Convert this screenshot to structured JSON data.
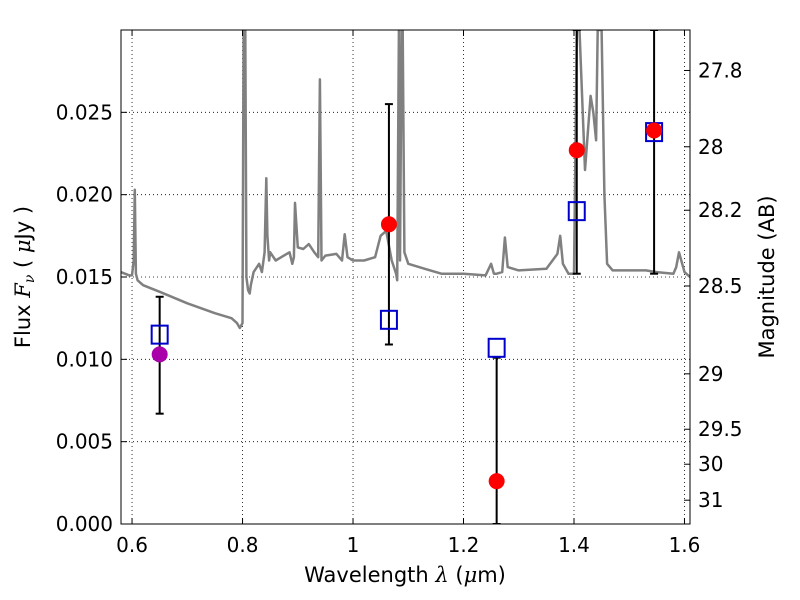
{
  "chart_data": {
    "type": "scatter",
    "title": "",
    "xlabel": "Wavelength  λ (μm)",
    "ylabel": "Flux  Fν  ( μJy )",
    "right_ylabel": "Magnitude (AB)",
    "xlim": [
      0.58,
      1.61
    ],
    "ylim": [
      0.0,
      0.03
    ],
    "grid": true,
    "x_ticks": [
      {
        "value": 0.6,
        "label": "0.6"
      },
      {
        "value": 0.8,
        "label": "0.8"
      },
      {
        "value": 1.0,
        "label": "1"
      },
      {
        "value": 1.2,
        "label": "1.2"
      },
      {
        "value": 1.4,
        "label": "1.4"
      },
      {
        "value": 1.6,
        "label": "1.6"
      }
    ],
    "y_ticks": [
      {
        "value": 0.0,
        "label": "0.000"
      },
      {
        "value": 0.005,
        "label": "0.005"
      },
      {
        "value": 0.01,
        "label": "0.010"
      },
      {
        "value": 0.015,
        "label": "0.015"
      },
      {
        "value": 0.02,
        "label": "0.020"
      },
      {
        "value": 0.025,
        "label": "0.025"
      }
    ],
    "right_ticks": [
      {
        "mag": 27.8,
        "label": "27.8"
      },
      {
        "mag": 28.0,
        "label": "28"
      },
      {
        "mag": 28.2,
        "label": "28.2"
      },
      {
        "mag": 28.5,
        "label": "28.5"
      },
      {
        "mag": 29.0,
        "label": "29"
      },
      {
        "mag": 29.5,
        "label": "29.5"
      },
      {
        "mag": 30.0,
        "label": "30"
      },
      {
        "mag": 31.0,
        "label": "31"
      }
    ],
    "observed": [
      {
        "x": 0.65,
        "y": 0.0103,
        "yerr_low": 0.0067,
        "yerr_high": 0.0138,
        "color": "#aa00aa"
      },
      {
        "x": 1.065,
        "y": 0.0182,
        "yerr_low": 0.0109,
        "yerr_high": 0.0255,
        "color": "#ff0000"
      },
      {
        "x": 1.26,
        "y": 0.0026,
        "yerr_low": 0.0,
        "yerr_high": 0.0101,
        "color": "#ff0000"
      },
      {
        "x": 1.405,
        "y": 0.0227,
        "yerr_low": 0.0152,
        "yerr_high": 0.03,
        "color": "#ff0000"
      },
      {
        "x": 1.545,
        "y": 0.0239,
        "yerr_low": 0.0152,
        "yerr_high": 0.03,
        "color": "#ff0000"
      }
    ],
    "model_points": [
      {
        "x": 0.65,
        "y": 0.0115
      },
      {
        "x": 1.065,
        "y": 0.0124
      },
      {
        "x": 1.26,
        "y": 0.0107
      },
      {
        "x": 1.405,
        "y": 0.019
      },
      {
        "x": 1.545,
        "y": 0.0238
      }
    ],
    "model_spectrum": {
      "color": "#808080",
      "x": [
        0.58,
        0.595,
        0.6,
        0.603,
        0.605,
        0.607,
        0.61,
        0.62,
        0.65,
        0.7,
        0.75,
        0.78,
        0.79,
        0.795,
        0.8,
        0.802,
        0.805,
        0.807,
        0.81,
        0.813,
        0.815,
        0.82,
        0.83,
        0.835,
        0.84,
        0.843,
        0.845,
        0.848,
        0.85,
        0.86,
        0.87,
        0.88,
        0.885,
        0.89,
        0.893,
        0.895,
        0.9,
        0.91,
        0.92,
        0.93,
        0.937,
        0.94,
        0.943,
        0.95,
        0.97,
        0.98,
        0.985,
        0.99,
        1.0,
        1.02,
        1.04,
        1.05,
        1.06,
        1.07,
        1.078,
        1.08,
        1.083,
        1.085,
        1.088,
        1.09,
        1.093,
        1.1,
        1.13,
        1.16,
        1.2,
        1.24,
        1.25,
        1.255,
        1.26,
        1.27,
        1.275,
        1.28,
        1.3,
        1.35,
        1.37,
        1.375,
        1.38,
        1.39,
        1.395,
        1.4,
        1.405,
        1.41,
        1.42,
        1.43,
        1.435,
        1.44,
        1.443,
        1.445,
        1.447,
        1.45,
        1.455,
        1.46,
        1.47,
        1.48,
        1.5,
        1.53,
        1.55,
        1.58,
        1.585,
        1.59,
        1.6,
        1.61
      ],
      "y": [
        0.0153,
        0.0151,
        0.0151,
        0.016,
        0.0203,
        0.0152,
        0.0148,
        0.0145,
        0.0141,
        0.0134,
        0.0128,
        0.0125,
        0.0122,
        0.0119,
        0.0122,
        0.03,
        0.03,
        0.015,
        0.0142,
        0.014,
        0.0145,
        0.0153,
        0.0158,
        0.0153,
        0.0165,
        0.021,
        0.0175,
        0.016,
        0.0165,
        0.016,
        0.0162,
        0.0164,
        0.0165,
        0.0158,
        0.0162,
        0.0195,
        0.0168,
        0.0167,
        0.017,
        0.0165,
        0.0162,
        0.027,
        0.016,
        0.0163,
        0.0164,
        0.016,
        0.0176,
        0.0162,
        0.016,
        0.016,
        0.0162,
        0.0175,
        0.0178,
        0.016,
        0.0152,
        0.0148,
        0.03,
        0.016,
        0.03,
        0.03,
        0.0165,
        0.0158,
        0.0155,
        0.0152,
        0.0152,
        0.0151,
        0.0158,
        0.0152,
        0.0152,
        0.0153,
        0.0174,
        0.0156,
        0.0154,
        0.0155,
        0.0164,
        0.0175,
        0.0158,
        0.0152,
        0.0152,
        0.0152,
        0.03,
        0.03,
        0.0215,
        0.026,
        0.025,
        0.0233,
        0.03,
        0.03,
        0.03,
        0.03,
        0.02,
        0.0158,
        0.0154,
        0.0154,
        0.0154,
        0.0154,
        0.0153,
        0.0152,
        0.0156,
        0.0165,
        0.0153,
        0.015
      ]
    }
  }
}
